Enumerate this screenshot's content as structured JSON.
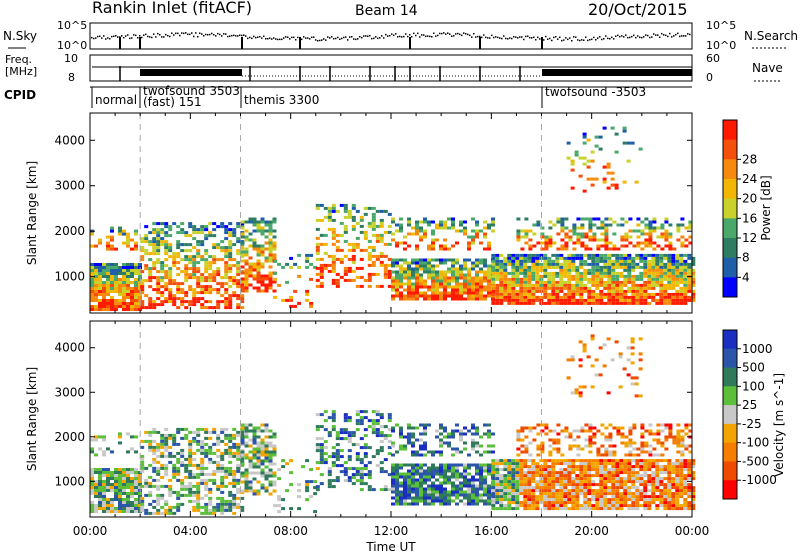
{
  "header": {
    "title": "Rankin Inlet (fitACF)",
    "beam": "Beam 14",
    "date": "20/Oct/2015"
  },
  "strip_labels": {
    "nsky": "N.Sky",
    "nsky_left_top": "10^5",
    "nsky_left_bottom": "10^0",
    "nsky_right_top": "10^5",
    "nsky_right_bottom": "10^0",
    "nsearch": "N.Search",
    "freq_line1": "Freq.",
    "freq_line2": "[MHz]",
    "freq_left_top": "10",
    "freq_left_bottom": "8",
    "nave_right_top": "60",
    "nave_right_bottom": "0",
    "nave": "Nave",
    "cpid": "CPID"
  },
  "cpid_modes": [
    {
      "label": "normal"
    },
    {
      "label": "twofsound 3503",
      "sub": "(fast) 151"
    },
    {
      "label": "themis 3300"
    },
    {
      "label": "twofsound -3503"
    }
  ],
  "colors": {
    "power_scale": [
      "#0000ff",
      "#1f5fa8",
      "#2e7d63",
      "#4aa86a",
      "#c9d22a",
      "#f2b705",
      "#f58a0c",
      "#f4500c",
      "#ff1a00"
    ],
    "velocity_scale": [
      "#1a2fbf",
      "#2a55a8",
      "#2f7a5a",
      "#5bbf3a",
      "#c8c8c8",
      "#f2a500",
      "#f57d00",
      "#f04a00",
      "#ff0000"
    ]
  },
  "chart_data": [
    {
      "type": "heatmap",
      "name": "power",
      "xlabel": "",
      "ylabel": "Slant Range [km]",
      "x_ticks": [
        "00:00",
        "04:00",
        "08:00",
        "12:00",
        "16:00",
        "20:00",
        "00:00"
      ],
      "y_ticks": [
        1000,
        2000,
        3000,
        4000
      ],
      "ylim": [
        200,
        4600
      ],
      "colorbar": {
        "label": "Power [dB]",
        "ticks": [
          4,
          8,
          12,
          16,
          20,
          24,
          28
        ]
      },
      "x_dashed_markers_hours": [
        2,
        6,
        18
      ]
    },
    {
      "type": "heatmap",
      "name": "velocity",
      "xlabel": "Time UT",
      "ylabel": "Slant Range [km]",
      "x_ticks": [
        "00:00",
        "04:00",
        "08:00",
        "12:00",
        "16:00",
        "20:00",
        "00:00"
      ],
      "y_ticks": [
        1000,
        2000,
        3000,
        4000
      ],
      "ylim": [
        200,
        4600
      ],
      "colorbar": {
        "label": "Velocity [m s^-1]",
        "ticks": [
          1000,
          500,
          100,
          25,
          -25,
          -100,
          -500,
          -1000
        ]
      },
      "x_dashed_markers_hours": [
        2,
        6,
        18
      ]
    }
  ]
}
